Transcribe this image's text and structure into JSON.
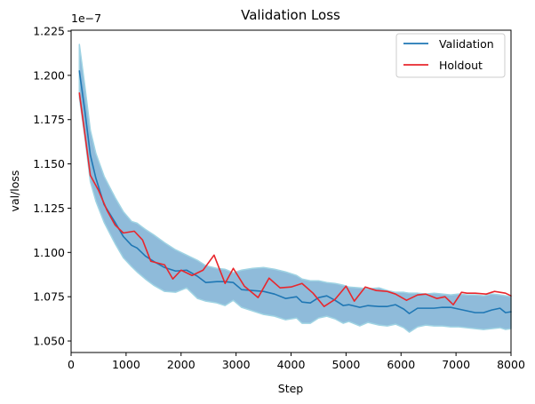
{
  "chart_data": {
    "type": "line",
    "title": "Validation Loss",
    "xlabel": "Step",
    "ylabel": "val/loss",
    "offset_label": "1e−7",
    "xlim": [
      0,
      8000
    ],
    "ylim": [
      1.0435,
      1.2255
    ],
    "xticks": [
      0,
      1000,
      2000,
      3000,
      4000,
      5000,
      6000,
      7000,
      8000
    ],
    "xtick_labels": [
      "0",
      "1000",
      "2000",
      "3000",
      "4000",
      "5000",
      "6000",
      "7000",
      "8000"
    ],
    "yticks": [
      1.05,
      1.075,
      1.1,
      1.125,
      1.15,
      1.175,
      1.2,
      1.225
    ],
    "ytick_labels": [
      "1.050",
      "1.075",
      "1.100",
      "1.125",
      "1.150",
      "1.175",
      "1.200",
      "1.225"
    ],
    "legend_position": "top-right",
    "legend": [
      "Validation",
      "Holdout"
    ],
    "colors": {
      "validation": "#1f77b4",
      "holdout": "#e8272d",
      "band_fill": "#7bafd4",
      "band_edge": "#9fd3e3"
    },
    "series": [
      {
        "name": "Validation",
        "x": [
          150,
          250,
          350,
          450,
          600,
          800,
          950,
          1100,
          1200,
          1350,
          1500,
          1700,
          1900,
          2100,
          2300,
          2450,
          2650,
          2800,
          2950,
          3100,
          3300,
          3500,
          3700,
          3900,
          4100,
          4200,
          4350,
          4500,
          4650,
          4800,
          4950,
          5050,
          5250,
          5400,
          5600,
          5750,
          5900,
          6050,
          6150,
          6300,
          6450,
          6600,
          6750,
          6900,
          7050,
          7200,
          7350,
          7500,
          7650,
          7800,
          7900,
          8000
        ],
        "y": [
          1.2025,
          1.18,
          1.155,
          1.142,
          1.127,
          1.117,
          1.109,
          1.104,
          1.1025,
          1.098,
          1.095,
          1.0915,
          1.0895,
          1.09,
          1.0865,
          1.083,
          1.0835,
          1.0835,
          1.083,
          1.079,
          1.0785,
          1.078,
          1.0765,
          1.074,
          1.075,
          1.072,
          1.0715,
          1.0745,
          1.0755,
          1.073,
          1.07,
          1.0705,
          1.069,
          1.07,
          1.0695,
          1.0695,
          1.0705,
          1.068,
          1.0655,
          1.0685,
          1.0685,
          1.0685,
          1.069,
          1.069,
          1.068,
          1.067,
          1.066,
          1.066,
          1.0675,
          1.0685,
          1.066,
          1.0665
        ]
      },
      {
        "name": "Validation band upper",
        "x": [
          150,
          250,
          350,
          450,
          600,
          800,
          950,
          1100,
          1200,
          1350,
          1500,
          1700,
          1900,
          2100,
          2300,
          2450,
          2650,
          2800,
          2950,
          3100,
          3300,
          3500,
          3700,
          3900,
          4100,
          4200,
          4350,
          4500,
          4650,
          4800,
          4950,
          5050,
          5250,
          5400,
          5600,
          5750,
          5900,
          6050,
          6150,
          6300,
          6450,
          6600,
          6750,
          6900,
          7050,
          7200,
          7350,
          7500,
          7650,
          7800,
          7900,
          8000
        ],
        "y": [
          1.2175,
          1.194,
          1.169,
          1.156,
          1.143,
          1.131,
          1.123,
          1.1175,
          1.1165,
          1.113,
          1.11,
          1.1055,
          1.1015,
          1.0985,
          1.0955,
          1.0925,
          1.091,
          1.0905,
          1.0885,
          1.09,
          1.091,
          1.0915,
          1.0905,
          1.089,
          1.087,
          1.085,
          1.084,
          1.084,
          1.083,
          1.0825,
          1.0815,
          1.0805,
          1.08,
          1.0795,
          1.08,
          1.0785,
          1.0775,
          1.0775,
          1.077,
          1.077,
          1.0765,
          1.077,
          1.0765,
          1.076,
          1.0765,
          1.076,
          1.076,
          1.0755,
          1.0765,
          1.076,
          1.0755,
          1.075
        ]
      },
      {
        "name": "Validation band lower",
        "x": [
          150,
          250,
          350,
          450,
          600,
          800,
          950,
          1100,
          1200,
          1350,
          1500,
          1700,
          1900,
          2100,
          2300,
          2450,
          2650,
          2800,
          2950,
          3100,
          3300,
          3500,
          3700,
          3900,
          4100,
          4200,
          4350,
          4500,
          4650,
          4800,
          4950,
          5050,
          5250,
          5400,
          5600,
          5750,
          5900,
          6050,
          6150,
          6300,
          6450,
          6600,
          6750,
          6900,
          7050,
          7200,
          7350,
          7500,
          7650,
          7800,
          7900,
          8000
        ],
        "y": [
          1.1875,
          1.165,
          1.14,
          1.129,
          1.117,
          1.105,
          1.097,
          1.092,
          1.089,
          1.085,
          1.0815,
          1.078,
          1.0775,
          1.08,
          1.074,
          1.0725,
          1.0715,
          1.07,
          1.073,
          1.069,
          1.067,
          1.065,
          1.064,
          1.062,
          1.063,
          1.06,
          1.06,
          1.063,
          1.064,
          1.0625,
          1.06,
          1.061,
          1.0585,
          1.0605,
          1.059,
          1.0585,
          1.0595,
          1.0575,
          1.055,
          1.058,
          1.059,
          1.0585,
          1.0585,
          1.058,
          1.058,
          1.0575,
          1.057,
          1.0565,
          1.057,
          1.0575,
          1.0565,
          1.057
        ]
      },
      {
        "name": "Holdout",
        "x": [
          150,
          250,
          350,
          500,
          650,
          800,
          950,
          1150,
          1300,
          1450,
          1700,
          1850,
          2000,
          2200,
          2400,
          2600,
          2800,
          2950,
          3150,
          3400,
          3600,
          3800,
          4000,
          4200,
          4400,
          4600,
          4800,
          5000,
          5150,
          5350,
          5550,
          5750,
          5900,
          6100,
          6300,
          6450,
          6650,
          6800,
          6950,
          7100,
          7200,
          7350,
          7550,
          7700,
          7900,
          8000
        ],
        "y": [
          1.19,
          1.167,
          1.1435,
          1.135,
          1.124,
          1.1155,
          1.111,
          1.112,
          1.107,
          1.095,
          1.093,
          1.085,
          1.09,
          1.087,
          1.09,
          1.0985,
          1.0825,
          1.091,
          1.081,
          1.0745,
          1.0855,
          1.08,
          1.0805,
          1.0825,
          1.077,
          1.0695,
          1.0735,
          1.081,
          1.0725,
          1.0805,
          1.0785,
          1.078,
          1.0765,
          1.073,
          1.076,
          1.0765,
          1.074,
          1.075,
          1.0705,
          1.0775,
          1.077,
          1.077,
          1.0765,
          1.078,
          1.077,
          1.0755
        ]
      }
    ]
  }
}
